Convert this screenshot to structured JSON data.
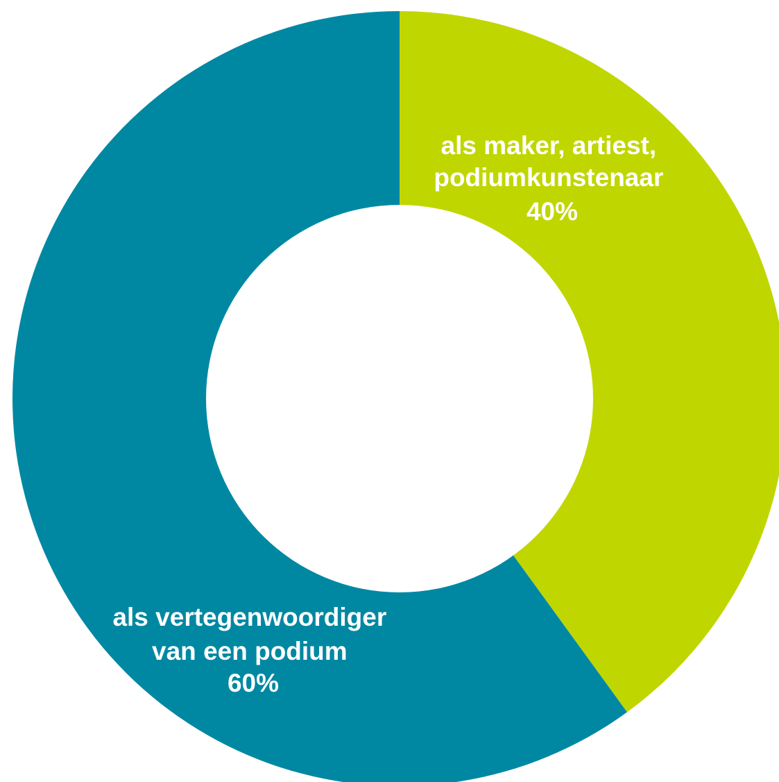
{
  "chart_data": {
    "type": "pie",
    "variant": "donut",
    "title": "",
    "slices": [
      {
        "label_lines": [
          "als maker, artiest,",
          "podiumkunstenaar"
        ],
        "value": 40,
        "value_label": "40%",
        "color": "#c0d600"
      },
      {
        "label_lines": [
          "als vertegenwoordiger",
          "van een podium"
        ],
        "value": 60,
        "value_label": "60%",
        "color": "#0088a2"
      }
    ],
    "start": "top",
    "direction": "clockwise"
  }
}
